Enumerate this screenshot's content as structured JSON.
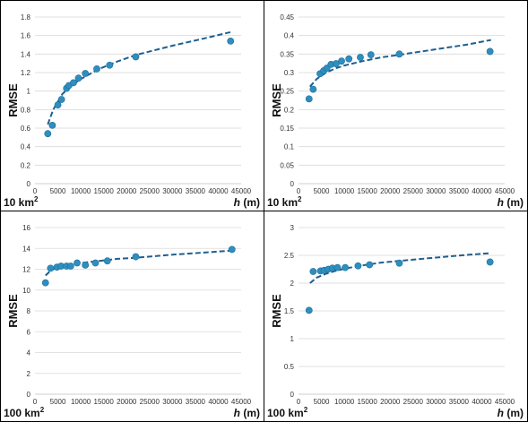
{
  "chart_data": [
    {
      "type": "scatter",
      "corner_label": {
        "value": "10 km",
        "sup": "2"
      },
      "xlabel": {
        "var": "h",
        "unit": " (m)"
      },
      "ylabel": "RMSE",
      "xlim": [
        0,
        45000
      ],
      "ylim": [
        0,
        1.8
      ],
      "xticks": [
        0,
        5000,
        10000,
        15000,
        20000,
        25000,
        30000,
        35000,
        40000,
        45000
      ],
      "yticks": [
        0,
        0.2,
        0.4,
        0.6,
        0.8,
        1,
        1.2,
        1.4,
        1.6,
        1.8
      ],
      "grid": "horizontal",
      "points": {
        "x": [
          2800,
          3800,
          5000,
          5800,
          6900,
          7400,
          8400,
          9500,
          11000,
          13500,
          16300,
          22000,
          42700
        ],
        "y": [
          0.54,
          0.63,
          0.85,
          0.91,
          1.03,
          1.06,
          1.09,
          1.14,
          1.19,
          1.24,
          1.28,
          1.37,
          1.54
        ]
      },
      "trend": {
        "style": "dashed",
        "x": [
          2800,
          4000,
          6000,
          8000,
          10000,
          14000,
          18000,
          22000,
          30000,
          37000,
          43000
        ],
        "y": [
          0.64,
          0.8,
          0.97,
          1.06,
          1.13,
          1.24,
          1.32,
          1.39,
          1.49,
          1.57,
          1.64
        ]
      }
    },
    {
      "type": "scatter",
      "corner_label": {
        "value": "10 km",
        "sup": "2"
      },
      "xlabel": {
        "var": "h",
        "unit": " (m)"
      },
      "ylabel": "RMSE",
      "xlim": [
        0,
        45000
      ],
      "ylim": [
        0,
        0.45
      ],
      "xticks": [
        0,
        5000,
        10000,
        15000,
        20000,
        25000,
        30000,
        35000,
        40000,
        45000
      ],
      "yticks": [
        0,
        0.05,
        0.1,
        0.15,
        0.2,
        0.25,
        0.3,
        0.35,
        0.4,
        0.45
      ],
      "grid": "horizontal",
      "points": {
        "x": [
          2300,
          3200,
          4700,
          5500,
          6200,
          7100,
          8200,
          9400,
          11000,
          13500,
          15800,
          22000,
          41800
        ],
        "y": [
          0.229,
          0.255,
          0.297,
          0.305,
          0.312,
          0.322,
          0.324,
          0.331,
          0.337,
          0.341,
          0.348,
          0.35,
          0.357
        ]
      },
      "trend": {
        "style": "dashed",
        "x": [
          2500,
          4000,
          6000,
          8000,
          10000,
          14000,
          18000,
          22000,
          30000,
          37000,
          42000
        ],
        "y": [
          0.262,
          0.283,
          0.3,
          0.311,
          0.319,
          0.331,
          0.341,
          0.348,
          0.363,
          0.376,
          0.388
        ]
      }
    },
    {
      "type": "scatter",
      "corner_label": {
        "value": "100 km",
        "sup": "2"
      },
      "xlabel": {
        "var": "h",
        "unit": " (m)"
      },
      "ylabel": "RMSE",
      "xlim": [
        0,
        45000
      ],
      "ylim": [
        0,
        16
      ],
      "xticks": [
        0,
        5000,
        10000,
        15000,
        20000,
        25000,
        30000,
        35000,
        40000,
        45000
      ],
      "yticks": [
        0,
        2,
        4,
        6,
        8,
        10,
        12,
        14,
        16
      ],
      "grid": "horizontal",
      "points": {
        "x": [
          2300,
          3400,
          4800,
          5700,
          6900,
          7800,
          9200,
          11000,
          13200,
          15800,
          22000,
          43000
        ],
        "y": [
          10.7,
          12.1,
          12.2,
          12.3,
          12.3,
          12.3,
          12.6,
          12.4,
          12.6,
          12.8,
          13.2,
          13.9
        ]
      },
      "trend": {
        "style": "dashed",
        "x": [
          2300,
          3500,
          5000,
          7000,
          10000,
          14000,
          18000,
          22000,
          30000,
          37000,
          43000
        ],
        "y": [
          11.4,
          11.9,
          12.2,
          12.4,
          12.6,
          12.8,
          13.0,
          13.1,
          13.4,
          13.6,
          13.8
        ]
      }
    },
    {
      "type": "scatter",
      "corner_label": {
        "value": "100 km",
        "sup": "2"
      },
      "xlabel": {
        "var": "h",
        "unit": " (m)"
      },
      "ylabel": "RMSE",
      "xlim": [
        0,
        45000
      ],
      "ylim": [
        0,
        3
      ],
      "xticks": [
        0,
        5000,
        10000,
        15000,
        20000,
        25000,
        30000,
        35000,
        40000,
        45000
      ],
      "yticks": [
        0,
        0.5,
        1,
        1.5,
        2,
        2.5,
        3
      ],
      "grid": "horizontal",
      "points": {
        "x": [
          2300,
          3200,
          4800,
          5600,
          6500,
          7400,
          8500,
          10200,
          13000,
          15500,
          22000,
          41800
        ],
        "y": [
          1.51,
          2.21,
          2.22,
          2.23,
          2.25,
          2.27,
          2.28,
          2.28,
          2.31,
          2.33,
          2.36,
          2.38
        ]
      },
      "trend": {
        "style": "dashed",
        "x": [
          2500,
          4000,
          6000,
          8000,
          10000,
          14000,
          18000,
          22000,
          30000,
          37000,
          42000
        ],
        "y": [
          2.0,
          2.1,
          2.17,
          2.22,
          2.26,
          2.32,
          2.37,
          2.4,
          2.46,
          2.51,
          2.54
        ]
      }
    }
  ]
}
